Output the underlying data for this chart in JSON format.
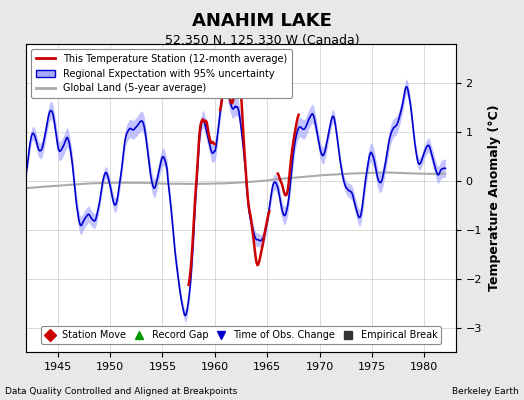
{
  "title": "ANAHIM LAKE",
  "subtitle": "52.350 N, 125.330 W (Canada)",
  "ylabel": "Temperature Anomaly (°C)",
  "footer_left": "Data Quality Controlled and Aligned at Breakpoints",
  "footer_right": "Berkeley Earth",
  "xlim": [
    1942,
    1983
  ],
  "ylim": [
    -3.5,
    2.8
  ],
  "yticks": [
    -3,
    -2,
    -1,
    0,
    1,
    2
  ],
  "xticks": [
    1945,
    1950,
    1955,
    1960,
    1965,
    1970,
    1975,
    1980
  ],
  "bg_color": "#e8e8e8",
  "plot_bg_color": "#ffffff",
  "regional_color": "#0000cc",
  "regional_fill_color": "#aaaaff",
  "station_color": "#cc0000",
  "global_color": "#aaaaaa",
  "legend_labels": [
    "This Temperature Station (12-month average)",
    "Regional Expectation with 95% uncertainty",
    "Global Land (5-year average)"
  ],
  "bottom_legend": [
    "Station Move",
    "Record Gap",
    "Time of Obs. Change",
    "Empirical Break"
  ],
  "bottom_legend_colors": [
    "#cc0000",
    "#009900",
    "#0000cc",
    "#333333"
  ],
  "bottom_legend_markers": [
    "D",
    "^",
    "v",
    "s"
  ],
  "seed": 42
}
